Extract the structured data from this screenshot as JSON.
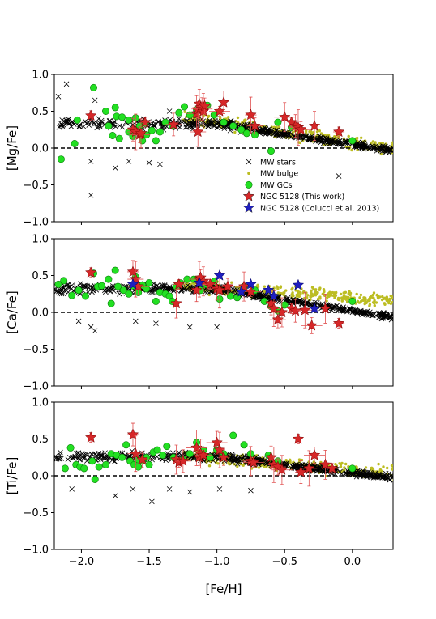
{
  "chart_data": {
    "type": "scatter",
    "xlabel": "[Fe/H]",
    "xlim": [
      -2.2,
      0.3
    ],
    "x_ticks": [
      -2.0,
      -1.5,
      -1.0,
      -0.5,
      0.0
    ],
    "x_tick_labels": [
      "−2.0",
      "−1.5",
      "−1.0",
      "−0.5",
      "0.0"
    ],
    "shared_x": true,
    "reference_line": {
      "y": 0.0,
      "style": "dashed"
    },
    "legend": {
      "placement": "lower-right of top panel",
      "entries": [
        {
          "label": "MW stars",
          "marker": "x",
          "color": "#000000"
        },
        {
          "label": "MW bulge",
          "marker": "dot",
          "color": "#bcbd22"
        },
        {
          "label": "MW GCs",
          "marker": "circle",
          "color": "#22e022"
        },
        {
          "label": "NGC 5128 (This work)",
          "marker": "star",
          "color": "#d62728"
        },
        {
          "label": "NGC 5128 (Colucci et al. 2013)",
          "marker": "star",
          "color": "#1f1fbf"
        }
      ]
    },
    "panels": [
      {
        "ylabel": "[Mg/Fe]",
        "ylim": [
          -1.0,
          1.0
        ],
        "y_ticks": [
          -1.0,
          -0.5,
          0.0,
          0.5,
          1.0
        ],
        "y_tick_labels": [
          "−1.0",
          "−0.5",
          "0.0",
          "0.5",
          "1.0"
        ],
        "show_legend": true,
        "outlier_stars": [
          [
            -2.11,
            0.87
          ],
          [
            -2.17,
            0.7
          ],
          [
            -1.9,
            0.65
          ],
          [
            -1.93,
            -0.64
          ],
          [
            -1.75,
            -0.27
          ],
          [
            -1.93,
            -0.18
          ],
          [
            -1.65,
            -0.18
          ],
          [
            -1.5,
            -0.2
          ],
          [
            -1.42,
            -0.22
          ],
          [
            -0.1,
            -0.38
          ],
          [
            -1.2,
            0.3
          ],
          [
            -1.35,
            0.5
          ]
        ],
        "gc": [
          [
            -1.91,
            0.82
          ],
          [
            -2.15,
            -0.15
          ],
          [
            -2.05,
            0.06
          ],
          [
            -2.03,
            0.38
          ],
          [
            -1.82,
            0.5
          ],
          [
            -1.77,
            0.17
          ],
          [
            -1.75,
            0.55
          ],
          [
            -1.74,
            0.43
          ],
          [
            -1.7,
            0.42
          ],
          [
            -1.65,
            0.22
          ],
          [
            -1.62,
            0.16
          ],
          [
            -1.6,
            0.41
          ],
          [
            -1.57,
            0.3
          ],
          [
            -1.55,
            0.1
          ],
          [
            -1.53,
            0.34
          ],
          [
            -1.52,
            0.18
          ],
          [
            -1.48,
            0.24
          ],
          [
            -1.45,
            0.1
          ],
          [
            -1.42,
            0.22
          ],
          [
            -1.38,
            0.35
          ],
          [
            -1.33,
            0.3
          ],
          [
            -1.28,
            0.48
          ],
          [
            -1.24,
            0.56
          ],
          [
            -1.2,
            0.45
          ],
          [
            -1.15,
            0.52
          ],
          [
            -1.07,
            0.58
          ],
          [
            -1.02,
            0.45
          ],
          [
            -0.95,
            0.35
          ],
          [
            -0.88,
            0.3
          ],
          [
            -0.82,
            0.25
          ],
          [
            -0.78,
            0.2
          ],
          [
            -0.72,
            0.18
          ],
          [
            -0.6,
            -0.04
          ],
          [
            -0.55,
            0.35
          ],
          [
            -0.45,
            0.28
          ],
          [
            0.0,
            0.1
          ],
          [
            -1.8,
            0.3
          ],
          [
            -1.72,
            0.13
          ],
          [
            -1.65,
            0.38
          ]
        ],
        "ngc_this": [
          [
            -1.93,
            0.44
          ],
          [
            -1.62,
            0.25
          ],
          [
            -1.6,
            0.22
          ],
          [
            -1.57,
            0.18
          ],
          [
            -1.56,
            0.2
          ],
          [
            -1.53,
            0.35
          ],
          [
            -1.32,
            0.32
          ],
          [
            -1.15,
            0.47
          ],
          [
            -1.14,
            0.52
          ],
          [
            -1.13,
            0.6
          ],
          [
            -1.12,
            0.55
          ],
          [
            -1.11,
            0.53
          ],
          [
            -1.1,
            0.5
          ],
          [
            -1.09,
            0.57
          ],
          [
            -1.14,
            0.22
          ],
          [
            -0.98,
            0.5
          ],
          [
            -0.95,
            0.62
          ],
          [
            -0.75,
            0.45
          ],
          [
            -0.72,
            0.3
          ],
          [
            -0.5,
            0.42
          ],
          [
            -0.45,
            0.35
          ],
          [
            -0.42,
            0.3
          ],
          [
            -0.4,
            0.28
          ],
          [
            -0.38,
            0.25
          ],
          [
            -0.28,
            0.3
          ],
          [
            -0.1,
            0.22
          ]
        ],
        "ngc_colucci": []
      },
      {
        "ylabel": "[Ca/Fe]",
        "ylim": [
          -1.0,
          1.0
        ],
        "y_ticks": [
          -1.0,
          -0.5,
          0.0,
          0.5,
          1.0
        ],
        "y_tick_labels": [
          "−1.0",
          "−0.5",
          "0.0",
          "0.5",
          "1.0"
        ],
        "show_legend": false,
        "outlier_stars": [
          [
            -2.02,
            -0.12
          ],
          [
            -1.93,
            -0.2
          ],
          [
            -1.9,
            -0.25
          ],
          [
            -1.6,
            -0.12
          ],
          [
            -1.45,
            -0.15
          ],
          [
            -1.2,
            -0.2
          ],
          [
            -1.0,
            -0.2
          ]
        ],
        "gc": [
          [
            -2.17,
            0.38
          ],
          [
            -2.13,
            0.43
          ],
          [
            -2.07,
            0.23
          ],
          [
            -2.02,
            0.3
          ],
          [
            -1.97,
            0.22
          ],
          [
            -1.91,
            0.53
          ],
          [
            -1.88,
            0.35
          ],
          [
            -1.85,
            0.36
          ],
          [
            -1.8,
            0.45
          ],
          [
            -1.75,
            0.57
          ],
          [
            -1.73,
            0.35
          ],
          [
            -1.69,
            0.3
          ],
          [
            -1.65,
            0.25
          ],
          [
            -1.6,
            0.48
          ],
          [
            -1.58,
            0.27
          ],
          [
            -1.55,
            0.37
          ],
          [
            -1.52,
            0.32
          ],
          [
            -1.5,
            0.4
          ],
          [
            -1.45,
            0.15
          ],
          [
            -1.42,
            0.27
          ],
          [
            -1.38,
            0.25
          ],
          [
            -1.35,
            0.22
          ],
          [
            -1.33,
            0.15
          ],
          [
            -1.3,
            0.35
          ],
          [
            -1.27,
            0.4
          ],
          [
            -1.22,
            0.45
          ],
          [
            -1.17,
            0.45
          ],
          [
            -1.12,
            0.3
          ],
          [
            -1.08,
            0.38
          ],
          [
            -1.02,
            0.42
          ],
          [
            -0.98,
            0.18
          ],
          [
            -0.9,
            0.22
          ],
          [
            -0.85,
            0.2
          ],
          [
            -0.8,
            0.35
          ],
          [
            -0.72,
            0.3
          ],
          [
            -0.65,
            0.15
          ],
          [
            -0.6,
            0.08
          ],
          [
            -0.55,
            0.02
          ],
          [
            -0.5,
            0.1
          ],
          [
            0.0,
            0.15
          ],
          [
            -1.78,
            0.12
          ],
          [
            -1.62,
            0.36
          ]
        ],
        "ngc_this": [
          [
            -1.93,
            0.54
          ],
          [
            -1.62,
            0.55
          ],
          [
            -1.6,
            0.45
          ],
          [
            -1.58,
            0.35
          ],
          [
            -1.3,
            0.12
          ],
          [
            -1.28,
            0.38
          ],
          [
            -1.15,
            0.3
          ],
          [
            -1.13,
            0.45
          ],
          [
            -1.12,
            0.47
          ],
          [
            -1.1,
            0.42
          ],
          [
            -1.05,
            0.38
          ],
          [
            -1.0,
            0.32
          ],
          [
            -0.98,
            0.3
          ],
          [
            -0.92,
            0.35
          ],
          [
            -0.8,
            0.35
          ],
          [
            -0.75,
            0.28
          ],
          [
            -0.6,
            0.12
          ],
          [
            -0.58,
            0.05
          ],
          [
            -0.55,
            -0.1
          ],
          [
            -0.52,
            0.0
          ],
          [
            -0.45,
            0.05
          ],
          [
            -0.42,
            0.02
          ],
          [
            -0.35,
            0.03
          ],
          [
            -0.3,
            -0.18
          ],
          [
            -0.2,
            0.05
          ],
          [
            -0.1,
            -0.15
          ]
        ],
        "ngc_colucci": [
          [
            -1.62,
            0.38
          ],
          [
            -1.13,
            0.4
          ],
          [
            -0.98,
            0.5
          ],
          [
            -0.82,
            0.28
          ],
          [
            -0.75,
            0.38
          ],
          [
            -0.62,
            0.3
          ],
          [
            -0.58,
            0.22
          ],
          [
            -0.4,
            0.37
          ],
          [
            -0.28,
            0.05
          ]
        ]
      },
      {
        "ylabel": "[Ti/Fe]",
        "ylim": [
          -1.0,
          1.0
        ],
        "y_ticks": [
          -1.0,
          -0.5,
          0.0,
          0.5,
          1.0
        ],
        "y_tick_labels": [
          "−1.0",
          "−0.5",
          "0.0",
          "0.5",
          "1.0"
        ],
        "show_legend": false,
        "outlier_stars": [
          [
            -2.07,
            -0.18
          ],
          [
            -1.75,
            -0.27
          ],
          [
            -1.62,
            -0.18
          ],
          [
            -1.48,
            -0.35
          ],
          [
            -1.35,
            -0.18
          ],
          [
            -1.2,
            -0.22
          ],
          [
            -0.98,
            -0.18
          ],
          [
            -0.75,
            -0.2
          ]
        ],
        "gc": [
          [
            -2.12,
            0.1
          ],
          [
            -2.08,
            0.38
          ],
          [
            -2.04,
            0.15
          ],
          [
            -2.01,
            0.12
          ],
          [
            -1.98,
            0.1
          ],
          [
            -1.92,
            0.2
          ],
          [
            -1.9,
            -0.05
          ],
          [
            -1.87,
            0.12
          ],
          [
            -1.82,
            0.15
          ],
          [
            -1.78,
            0.3
          ],
          [
            -1.74,
            0.28
          ],
          [
            -1.7,
            0.25
          ],
          [
            -1.67,
            0.42
          ],
          [
            -1.64,
            0.2
          ],
          [
            -1.61,
            0.15
          ],
          [
            -1.58,
            0.12
          ],
          [
            -1.55,
            0.2
          ],
          [
            -1.52,
            0.25
          ],
          [
            -1.5,
            0.15
          ],
          [
            -1.47,
            0.32
          ],
          [
            -1.44,
            0.35
          ],
          [
            -1.4,
            0.28
          ],
          [
            -1.37,
            0.4
          ],
          [
            -1.32,
            0.25
          ],
          [
            -1.25,
            0.22
          ],
          [
            -1.2,
            0.3
          ],
          [
            -1.15,
            0.45
          ],
          [
            -1.1,
            0.35
          ],
          [
            -1.05,
            0.25
          ],
          [
            -1.0,
            0.35
          ],
          [
            -0.95,
            0.3
          ],
          [
            -0.88,
            0.55
          ],
          [
            -0.8,
            0.42
          ],
          [
            -0.75,
            0.3
          ],
          [
            -0.62,
            0.28
          ],
          [
            -0.55,
            0.2
          ],
          [
            0.0,
            0.1
          ],
          [
            -1.58,
            0.22
          ]
        ],
        "ngc_this": [
          [
            -1.93,
            0.52
          ],
          [
            -1.62,
            0.56
          ],
          [
            -1.6,
            0.3
          ],
          [
            -1.55,
            0.22
          ],
          [
            -1.3,
            0.22
          ],
          [
            -1.28,
            0.18
          ],
          [
            -1.25,
            0.2
          ],
          [
            -1.15,
            0.38
          ],
          [
            -1.13,
            0.25
          ],
          [
            -1.12,
            0.3
          ],
          [
            -1.1,
            0.28
          ],
          [
            -1.0,
            0.45
          ],
          [
            -0.98,
            0.35
          ],
          [
            -0.95,
            0.25
          ],
          [
            -0.75,
            0.2
          ],
          [
            -0.73,
            0.18
          ],
          [
            -0.6,
            0.25
          ],
          [
            -0.58,
            0.15
          ],
          [
            -0.55,
            0.12
          ],
          [
            -0.52,
            0.08
          ],
          [
            -0.4,
            0.5
          ],
          [
            -0.38,
            0.05
          ],
          [
            -0.32,
            0.1
          ],
          [
            -0.28,
            0.28
          ],
          [
            -0.2,
            0.15
          ],
          [
            -0.15,
            0.1
          ]
        ],
        "ngc_colucci": []
      }
    ]
  }
}
